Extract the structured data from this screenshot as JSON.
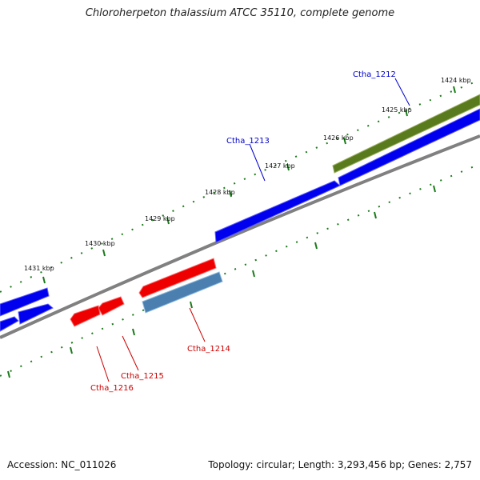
{
  "title": "Chloroherpeton thalassium ATCC 35110, complete genome",
  "footer": {
    "accession": "Accession: NC_011026",
    "topology": "Topology: circular; Length: 3,293,456 bp; Genes: 2,757"
  },
  "tick_labels": [
    "1424 kbp",
    "1425 kbp",
    "1426 kbp",
    "1427 kbp",
    "1428 kbp",
    "1429 kbp",
    "1430 kbp",
    "1431 kbp"
  ],
  "genes": [
    {
      "label": "Ctha_1212",
      "color": "#0000cc"
    },
    {
      "label": "Ctha_1213",
      "color": "#0000cc"
    },
    {
      "label": "Ctha_1214",
      "color": "#cc0000"
    },
    {
      "label": "Ctha_1215",
      "color": "#cc0000"
    },
    {
      "label": "Ctha_1216",
      "color": "#cc0000"
    }
  ],
  "colors": {
    "forward_cds": "#0000ee",
    "reverse_cds": "#ee0000",
    "olive_feature": "#5a7a1e",
    "steel_feature": "#4a7fb0",
    "backbone": "#808080",
    "ticks": "#1a7a1a"
  }
}
